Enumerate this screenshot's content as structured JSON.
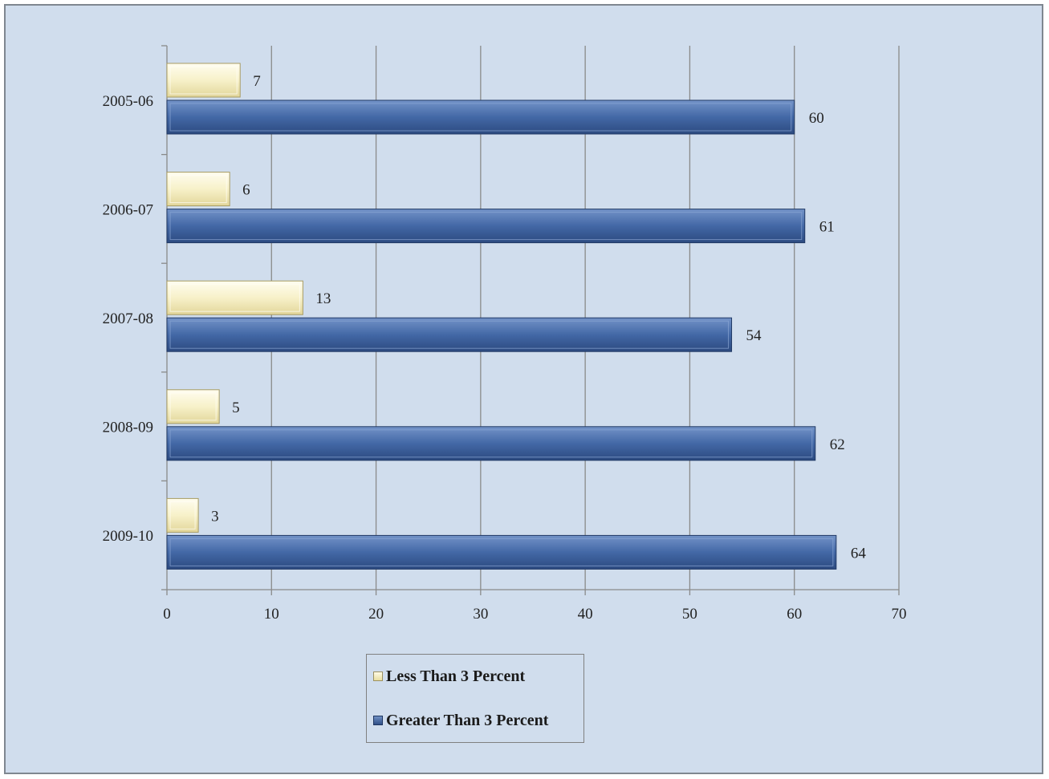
{
  "chart_data": {
    "type": "bar",
    "orientation": "horizontal",
    "categories": [
      "2005-06",
      "2006-07",
      "2007-08",
      "2008-09",
      "2009-10"
    ],
    "series": [
      {
        "name": "Less Than 3 Percent",
        "values": [
          7,
          6,
          13,
          5,
          3
        ],
        "color": "#f5efc6"
      },
      {
        "name": "Greater Than 3 Percent",
        "values": [
          60,
          61,
          54,
          62,
          64
        ],
        "color": "#4166a5"
      }
    ],
    "xlim": [
      0,
      70
    ],
    "xticks": [
      "0",
      "10",
      "20",
      "30",
      "40",
      "50",
      "60",
      "70"
    ],
    "grid": true,
    "legend_position": "bottom",
    "title": "",
    "xlabel": "",
    "ylabel": ""
  }
}
